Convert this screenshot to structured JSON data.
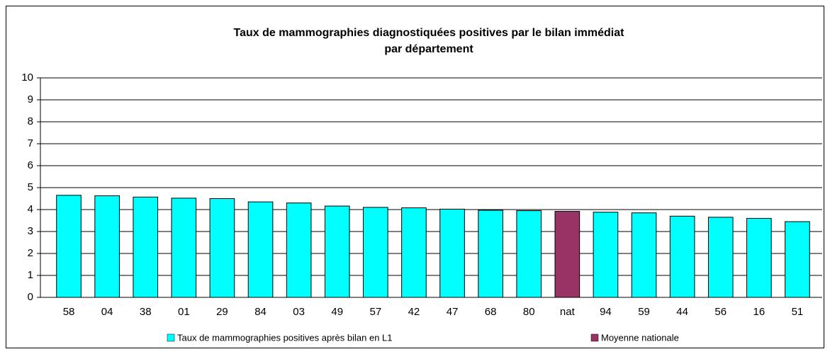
{
  "chart_data": {
    "type": "bar",
    "title": [
      "Taux de  mammographies diagnostiquées positives par le bilan immédiat",
      "par département"
    ],
    "categories": [
      "58",
      "04",
      "38",
      "01",
      "29",
      "84",
      "03",
      "49",
      "57",
      "42",
      "47",
      "68",
      "80",
      "nat",
      "94",
      "59",
      "44",
      "56",
      "16",
      "51"
    ],
    "series": [
      {
        "name": "Taux de mammographies positives après bilan en L1",
        "color": "#00ffff",
        "values": [
          4.65,
          4.63,
          4.57,
          4.52,
          4.5,
          4.35,
          4.3,
          4.16,
          4.1,
          4.08,
          4.02,
          3.97,
          3.95,
          null,
          3.88,
          3.85,
          3.7,
          3.65,
          3.6,
          3.45
        ]
      },
      {
        "name": "Moyenne nationale",
        "color": "#993366",
        "values": [
          null,
          null,
          null,
          null,
          null,
          null,
          null,
          null,
          null,
          null,
          null,
          null,
          null,
          3.92,
          null,
          null,
          null,
          null,
          null,
          null
        ]
      }
    ],
    "ylim": [
      0,
      10
    ],
    "yticks": [
      0,
      1,
      2,
      3,
      4,
      5,
      6,
      7,
      8,
      9,
      10
    ],
    "grid": true
  }
}
